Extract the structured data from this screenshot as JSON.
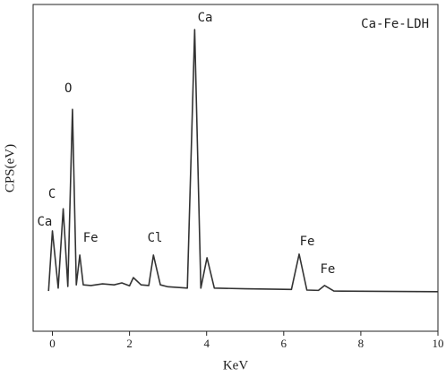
{
  "chart_data": {
    "type": "line",
    "xlabel": "KeV",
    "ylabel": "CPS(eV)",
    "x": [
      -0.1,
      0.0,
      0.15,
      0.28,
      0.4,
      0.52,
      0.62,
      0.71,
      0.8,
      1.0,
      1.3,
      1.6,
      1.8,
      2.0,
      2.1,
      2.3,
      2.5,
      2.62,
      2.8,
      3.0,
      3.5,
      3.69,
      3.85,
      4.01,
      4.2,
      5.0,
      6.2,
      6.4,
      6.6,
      6.9,
      7.06,
      7.3,
      8.5,
      10.0
    ],
    "series": [
      {
        "name": "Ca-Fe-LDH",
        "color": "#333333",
        "values": [
          12.3,
          30.7,
          13.2,
          37.5,
          13.7,
          67.9,
          14.2,
          23.3,
          14.2,
          14.0,
          14.5,
          14.2,
          14.8,
          13.9,
          16.4,
          14.2,
          14.0,
          23.3,
          14.2,
          13.6,
          13.2,
          92.3,
          13.2,
          22.5,
          13.2,
          13.0,
          12.8,
          23.6,
          12.6,
          12.5,
          14.0,
          12.3,
          12.2,
          12.1
        ]
      }
    ],
    "annotations": [
      {
        "text": "Ca",
        "x": -0.2,
        "y": 33.4
      },
      {
        "text": "C",
        "x": -0.01,
        "y": 41.9
      },
      {
        "text": "O",
        "x": 0.41,
        "y": 74.2
      },
      {
        "text": "Fe",
        "x": 0.99,
        "y": 28.5
      },
      {
        "text": "Cl",
        "x": 2.66,
        "y": 28.5
      },
      {
        "text": "Ca",
        "x": 3.96,
        "y": 95.9
      },
      {
        "text": "Fe",
        "x": 6.61,
        "y": 27.4
      },
      {
        "text": "Fe",
        "x": 7.14,
        "y": 18.9
      }
    ],
    "xlim": [
      -0.5,
      10
    ],
    "xticks": [
      0,
      2,
      4,
      6,
      8,
      10
    ],
    "ylim": [
      0,
      100
    ],
    "legend": "upper right"
  }
}
